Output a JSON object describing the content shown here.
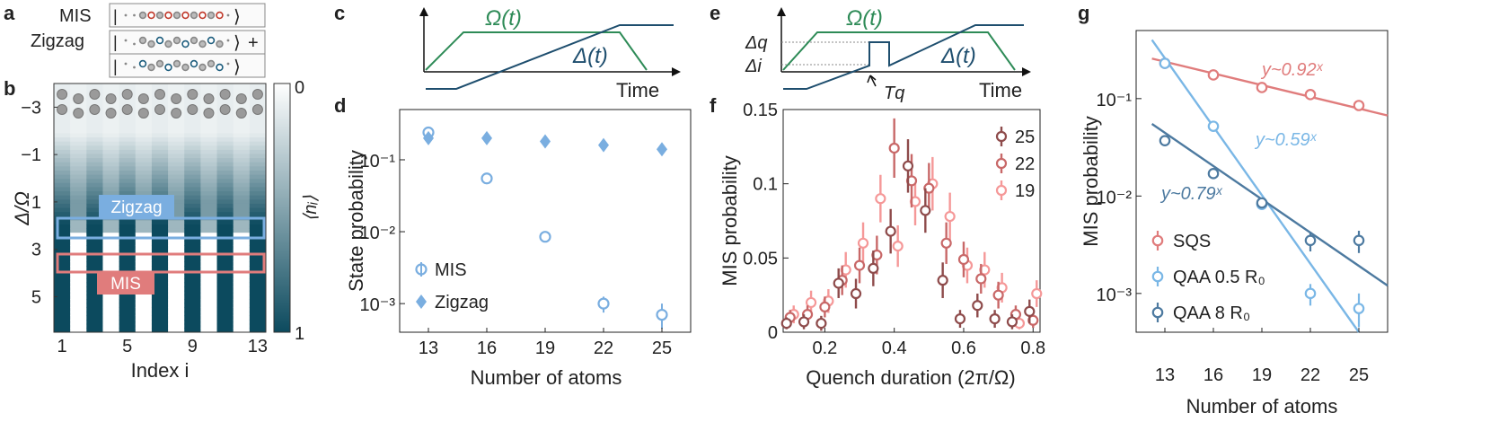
{
  "panel_labels": [
    "a",
    "b",
    "c",
    "d",
    "e",
    "f",
    "g"
  ],
  "colors": {
    "heatmap_dark": "#0c4a5e",
    "blue_light": "#7aaee0",
    "green": "#2e8b57",
    "navy": "#1e4e6e",
    "red": "#e07c7c",
    "grey_atom": "#9a9a9a",
    "f_dark": "#8e4b4b",
    "f_mid": "#c86868",
    "f_light": "#f59898",
    "g_red": "#e07c7c",
    "g_light": "#7ab7e6",
    "g_dark": "#4d7aa0"
  },
  "panel_a": {
    "mis_label": "MIS",
    "zigzag_label": "Zigzag",
    "ket_end": "⟩",
    "plus": "+",
    "bar": "|"
  },
  "panel_b": {
    "ylabel": "Δ/Ω",
    "xlabel": "Index i",
    "y_ticks": [
      "−3",
      "−1",
      "1",
      "3",
      "5"
    ],
    "x_ticks": [
      "1",
      "5",
      "9",
      "13"
    ],
    "colorbar_label": "⟨nᵢ⟩",
    "colorbar_ticks": [
      "0",
      "1"
    ],
    "zigzag_box_label": "Zigzag",
    "mis_box_label": "MIS",
    "sites": 13
  },
  "panel_c": {
    "omega_label": "Ω(t)",
    "delta_label": "Δ(t)",
    "time_label": "Time"
  },
  "panel_e": {
    "omega_label": "Ω(t)",
    "delta_label": "Δ(t)",
    "time_label": "Time",
    "delta_q": "Δq",
    "delta_i": "Δi",
    "t_q": "Tq"
  },
  "chart_data": [
    {
      "panel": "d",
      "type": "scatter",
      "xlabel": "Number of atoms",
      "ylabel": "State probability",
      "x_ticks": [
        13,
        16,
        19,
        22,
        25
      ],
      "y_ticks": [
        "10⁻³",
        "10⁻²",
        "10⁻¹"
      ],
      "ylim": [
        0.0004,
        0.5
      ],
      "yscale": "log",
      "legend_position": "bottom-left",
      "series": [
        {
          "name": "MIS",
          "marker": "open-circle",
          "x": [
            13,
            16,
            19,
            22,
            25
          ],
          "y": [
            0.24,
            0.055,
            0.0085,
            0.001,
            0.0007
          ],
          "err": [
            0.02,
            0.004,
            0.0005,
            0.00025,
            0.0003
          ]
        },
        {
          "name": "Zigzag",
          "marker": "filled-diamond",
          "x": [
            13,
            16,
            19,
            22,
            25
          ],
          "y": [
            0.2,
            0.2,
            0.18,
            0.16,
            0.14
          ],
          "err": [
            0,
            0,
            0,
            0,
            0
          ]
        }
      ]
    },
    {
      "panel": "f",
      "type": "scatter",
      "xlabel": "Quench duration (2π/Ω)",
      "ylabel": "MIS probability",
      "x_ticks": [
        "0.2",
        "0.4",
        "0.6",
        "0.8"
      ],
      "y_ticks": [
        "0",
        "0.05",
        "0.1",
        "0.15"
      ],
      "xlim": [
        0.08,
        0.82
      ],
      "ylim": [
        0,
        0.15
      ],
      "legend_position": "top-right",
      "series": [
        {
          "name": "25",
          "x": [
            0.1,
            0.15,
            0.2,
            0.25,
            0.3,
            0.35,
            0.4,
            0.45,
            0.5,
            0.55,
            0.6,
            0.65,
            0.7,
            0.75,
            0.8
          ],
          "y": [
            0.006,
            0.007,
            0.006,
            0.033,
            0.026,
            0.043,
            0.068,
            0.112,
            0.082,
            0.035,
            0.009,
            0.018,
            0.009,
            0.007,
            0.014
          ],
          "err": [
            0.004,
            0.005,
            0.005,
            0.01,
            0.01,
            0.012,
            0.015,
            0.018,
            0.015,
            0.012,
            0.006,
            0.008,
            0.006,
            0.005,
            0.008
          ]
        },
        {
          "name": "22",
          "x": [
            0.1,
            0.15,
            0.2,
            0.25,
            0.3,
            0.35,
            0.4,
            0.45,
            0.5,
            0.55,
            0.6,
            0.65,
            0.7,
            0.75,
            0.8
          ],
          "y": [
            0.01,
            0.012,
            0.017,
            0.035,
            0.045,
            0.052,
            0.124,
            0.102,
            0.097,
            0.06,
            0.049,
            0.036,
            0.025,
            0.012,
            0.008
          ],
          "err": [
            0.005,
            0.006,
            0.007,
            0.01,
            0.012,
            0.013,
            0.02,
            0.018,
            0.017,
            0.014,
            0.012,
            0.01,
            0.009,
            0.006,
            0.005
          ]
        },
        {
          "name": "19",
          "x": [
            0.1,
            0.15,
            0.2,
            0.25,
            0.3,
            0.35,
            0.4,
            0.45,
            0.5,
            0.55,
            0.6,
            0.65,
            0.7,
            0.75,
            0.8
          ],
          "y": [
            0.012,
            0.02,
            0.021,
            0.042,
            0.06,
            0.09,
            0.058,
            0.088,
            0.1,
            0.078,
            0.045,
            0.042,
            0.03,
            0.006,
            0.026
          ],
          "err": [
            0.006,
            0.008,
            0.008,
            0.012,
            0.014,
            0.016,
            0.014,
            0.016,
            0.018,
            0.016,
            0.012,
            0.012,
            0.01,
            0.004,
            0.009
          ]
        }
      ]
    },
    {
      "panel": "g",
      "type": "scatter",
      "xlabel": "Number of atoms",
      "ylabel": "MIS probability",
      "x_ticks": [
        13,
        16,
        19,
        22,
        25
      ],
      "y_ticks": [
        "10⁻³",
        "10⁻²",
        "10⁻¹"
      ],
      "yscale": "log",
      "ylim": [
        0.0004,
        0.5
      ],
      "legend_position": "bottom-left",
      "series": [
        {
          "name": "SQS",
          "x": [
            13,
            16,
            19,
            22,
            25
          ],
          "y": [
            0.23,
            0.175,
            0.13,
            0.11,
            0.085
          ],
          "err": [
            0,
            0,
            0,
            0,
            0
          ],
          "fit_label": "y~0.92ˣ",
          "fit": [
            0.24,
            0.083
          ]
        },
        {
          "name": "QAA 0.5 R₀",
          "x": [
            13,
            16,
            19,
            22,
            25
          ],
          "y": [
            0.23,
            0.052,
            0.0082,
            0.001,
            0.0007
          ],
          "err": [
            0,
            0.004,
            0.0006,
            0.00025,
            0.0003
          ],
          "fit_label": "y~0.59ˣ",
          "fit": [
            0.26,
            0.0004
          ]
        },
        {
          "name": "QAA 8 R₀",
          "x": [
            13,
            16,
            19,
            22,
            25
          ],
          "y": [
            0.037,
            0.017,
            0.0085,
            0.0035,
            0.0035
          ],
          "err": [
            0,
            0,
            0,
            0.0008,
            0.0009
          ],
          "fit_label": "y~0.79ˣ",
          "fit": [
            0.045,
            0.0022
          ]
        }
      ]
    }
  ]
}
